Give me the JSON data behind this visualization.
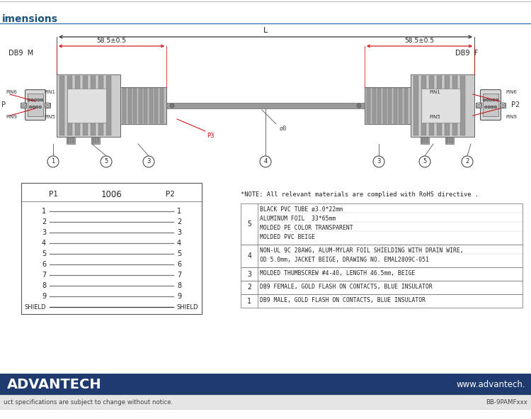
{
  "bg_color": "#ffffff",
  "white": "#ffffff",
  "dark_blue": "#1a3a6b",
  "title_text": "imensions",
  "title_color": "#1a5276",
  "footer_bar_color": "#1e3a6e",
  "footer_left": "ADVANTECH",
  "footer_right": "www.advantech.",
  "footer_sub_left": "uct specifications are subject to change without notice.",
  "footer_sub_right": "BB-9PAMFxxx",
  "dim_label": "58.5±0.5",
  "dim_label2": "58.5±0.5",
  "dim_L": "L",
  "db9m_label": "DB9  M",
  "db9f_label": "DB9  F",
  "p1_label": "P1",
  "p2_label": "P2",
  "p1006": "1006",
  "note_text": "*NOTE: All relevant materials are complied with RoHS directive .",
  "red_color": "#cc0000",
  "gray1": "#5a5a5a",
  "gray2": "#8a8a8a",
  "gray3": "#b0b0b0",
  "gray4": "#d0d0d0",
  "line_color": "#333333"
}
